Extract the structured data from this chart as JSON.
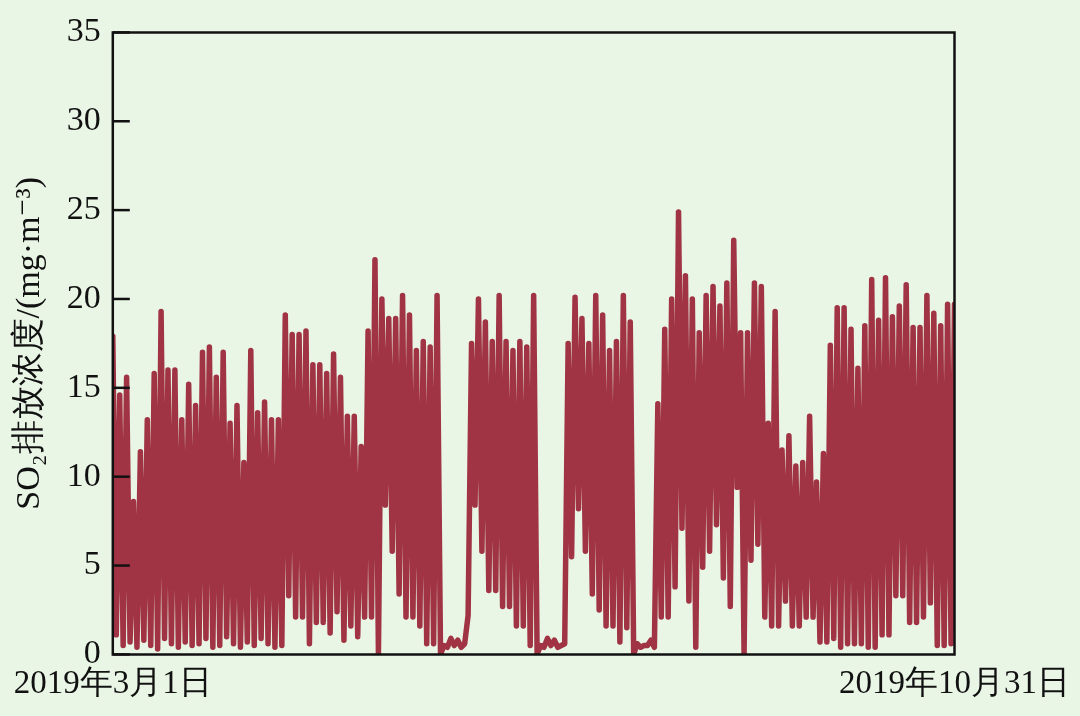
{
  "chart_data": {
    "type": "line",
    "ylabel": "SO₂排放浓度/(mg·m⁻³)",
    "x": [
      "2019-03-01",
      "2019-03-02",
      "2019-03-03",
      "2019-03-04",
      "2019-03-05",
      "2019-03-06",
      "2019-03-07",
      "2019-03-08",
      "2019-03-09",
      "2019-03-10",
      "2019-03-11",
      "2019-03-12",
      "2019-03-13",
      "2019-03-14",
      "2019-03-15",
      "2019-03-16",
      "2019-03-17",
      "2019-03-18",
      "2019-03-19",
      "2019-03-20",
      "2019-03-21",
      "2019-03-22",
      "2019-03-23",
      "2019-03-24",
      "2019-03-25",
      "2019-03-26",
      "2019-03-27",
      "2019-03-28",
      "2019-03-29",
      "2019-03-30",
      "2019-03-31",
      "2019-04-01",
      "2019-04-02",
      "2019-04-03",
      "2019-04-04",
      "2019-04-05",
      "2019-04-06",
      "2019-04-07",
      "2019-04-08",
      "2019-04-09",
      "2019-04-10",
      "2019-04-11",
      "2019-04-12",
      "2019-04-13",
      "2019-04-14",
      "2019-04-15",
      "2019-04-16",
      "2019-04-17",
      "2019-04-18",
      "2019-04-19",
      "2019-04-20",
      "2019-04-21",
      "2019-04-22",
      "2019-04-23",
      "2019-04-24",
      "2019-04-25",
      "2019-04-26",
      "2019-04-27",
      "2019-04-28",
      "2019-04-29",
      "2019-04-30",
      "2019-05-01",
      "2019-05-02",
      "2019-05-03",
      "2019-05-04",
      "2019-05-05",
      "2019-05-06",
      "2019-05-07",
      "2019-05-08",
      "2019-05-09",
      "2019-05-10",
      "2019-05-11",
      "2019-05-12",
      "2019-05-13",
      "2019-05-14",
      "2019-05-15",
      "2019-05-16",
      "2019-05-17",
      "2019-05-18",
      "2019-05-19",
      "2019-05-20",
      "2019-05-21",
      "2019-05-22",
      "2019-05-23",
      "2019-05-24",
      "2019-05-25",
      "2019-05-26",
      "2019-05-27",
      "2019-05-28",
      "2019-05-29",
      "2019-05-30",
      "2019-05-31",
      "2019-06-01",
      "2019-06-02",
      "2019-06-03",
      "2019-06-04",
      "2019-06-05",
      "2019-06-06",
      "2019-06-07",
      "2019-06-08",
      "2019-06-09",
      "2019-06-10",
      "2019-06-11",
      "2019-06-12",
      "2019-06-13",
      "2019-06-14",
      "2019-06-15",
      "2019-06-16",
      "2019-06-17",
      "2019-06-18",
      "2019-06-19",
      "2019-06-20",
      "2019-06-21",
      "2019-06-22",
      "2019-06-23",
      "2019-06-24",
      "2019-06-25",
      "2019-06-26",
      "2019-06-27",
      "2019-06-28",
      "2019-06-29",
      "2019-06-30",
      "2019-07-01",
      "2019-07-02",
      "2019-07-03",
      "2019-07-04",
      "2019-07-05",
      "2019-07-06",
      "2019-07-07",
      "2019-07-08",
      "2019-07-09",
      "2019-07-10",
      "2019-07-11",
      "2019-07-12",
      "2019-07-13",
      "2019-07-14",
      "2019-07-15",
      "2019-07-16",
      "2019-07-17",
      "2019-07-18",
      "2019-07-19",
      "2019-07-20",
      "2019-07-21",
      "2019-07-22",
      "2019-07-23",
      "2019-07-24",
      "2019-07-25",
      "2019-07-26",
      "2019-07-27",
      "2019-07-28",
      "2019-07-29",
      "2019-07-30",
      "2019-07-31",
      "2019-08-01",
      "2019-08-02",
      "2019-08-03",
      "2019-08-04",
      "2019-08-05",
      "2019-08-06",
      "2019-08-07",
      "2019-08-08",
      "2019-08-09",
      "2019-08-10",
      "2019-08-11",
      "2019-08-12",
      "2019-08-13",
      "2019-08-14",
      "2019-08-15",
      "2019-08-16",
      "2019-08-17",
      "2019-08-18",
      "2019-08-19",
      "2019-08-20",
      "2019-08-21",
      "2019-08-22",
      "2019-08-23",
      "2019-08-24",
      "2019-08-25",
      "2019-08-26",
      "2019-08-27",
      "2019-08-28",
      "2019-08-29",
      "2019-08-30",
      "2019-08-31",
      "2019-09-01",
      "2019-09-02",
      "2019-09-03",
      "2019-09-04",
      "2019-09-05",
      "2019-09-06",
      "2019-09-07",
      "2019-09-08",
      "2019-09-09",
      "2019-09-10",
      "2019-09-11",
      "2019-09-12",
      "2019-09-13",
      "2019-09-14",
      "2019-09-15",
      "2019-09-16",
      "2019-09-17",
      "2019-09-18",
      "2019-09-19",
      "2019-09-20",
      "2019-09-21",
      "2019-09-22",
      "2019-09-23",
      "2019-09-24",
      "2019-09-25",
      "2019-09-26",
      "2019-09-27",
      "2019-09-28",
      "2019-09-29",
      "2019-09-30",
      "2019-10-01",
      "2019-10-02",
      "2019-10-03",
      "2019-10-04",
      "2019-10-05",
      "2019-10-06",
      "2019-10-07",
      "2019-10-08",
      "2019-10-09",
      "2019-10-10",
      "2019-10-11",
      "2019-10-12",
      "2019-10-13",
      "2019-10-14",
      "2019-10-15",
      "2019-10-16",
      "2019-10-17",
      "2019-10-18",
      "2019-10-19",
      "2019-10-20",
      "2019-10-21",
      "2019-10-22",
      "2019-10-23",
      "2019-10-24",
      "2019-10-25",
      "2019-10-26",
      "2019-10-27",
      "2019-10-28",
      "2019-10-29",
      "2019-10-30",
      "2019-10-31"
    ],
    "values": [
      17.9,
      1.1,
      14.6,
      0.5,
      15.6,
      0.7,
      8.6,
      0.4,
      11.4,
      0.8,
      13.2,
      0.5,
      15.8,
      0.3,
      19.3,
      0.9,
      16,
      0.6,
      16,
      0.4,
      13.2,
      0.7,
      15.2,
      0.5,
      14,
      0.6,
      17,
      0.9,
      17.3,
      0.4,
      15.6,
      0.5,
      17,
      1,
      13,
      0.6,
      14,
      0.4,
      10.8,
      0.7,
      17.1,
      0.5,
      13.6,
      0.9,
      14.2,
      0.6,
      13.2,
      0.4,
      13.2,
      0.5,
      19.1,
      3.3,
      18,
      2.1,
      18,
      2.1,
      18.2,
      0.6,
      16.3,
      1.8,
      16.3,
      1.8,
      15.8,
      1.2,
      16.9,
      2.4,
      15.6,
      0.8,
      13.4,
      1.6,
      13.4,
      1,
      11.7,
      2.1,
      18.2,
      2.1,
      22.2,
      0,
      20,
      8.4,
      18.9,
      5.8,
      18.9,
      3.4,
      20.2,
      2.1,
      19.1,
      2.1,
      17.1,
      1.6,
      17.6,
      0.6,
      17.3,
      0.6,
      20.2,
      0,
      0.5,
      0.4,
      0.9,
      0.5,
      0.8,
      0.4,
      0.6,
      2.2,
      17.5,
      8.4,
      20,
      5.8,
      18.7,
      3.6,
      17.6,
      3.6,
      20.2,
      2.7,
      17.6,
      2.7,
      17.1,
      1.6,
      17.6,
      1.6,
      17.3,
      0.5,
      20.2,
      0,
      0.5,
      0.4,
      0.9,
      0.5,
      0.8,
      0.4,
      0.5,
      0.6,
      17.5,
      5.5,
      20.1,
      8.2,
      18.9,
      5.8,
      17.5,
      3.4,
      20.2,
      2.5,
      19.1,
      1.6,
      17.1,
      1.6,
      17.6,
      0.7,
      20.2,
      1.5,
      18.7,
      0,
      0.6,
      0.4,
      0.5,
      0.5,
      0.8,
      0.4,
      14.1,
      2.1,
      18.3,
      2.1,
      20,
      3.8,
      24.9,
      7.1,
      21.3,
      3,
      20,
      0.4,
      18.1,
      4.9,
      20.2,
      5.8,
      20.7,
      7.3,
      19.6,
      4.3,
      20.9,
      2.7,
      23.3,
      9.4,
      18.1,
      0,
      18.1,
      5.3,
      20.9,
      6.2,
      20.7,
      2.1,
      13,
      1.6,
      19.3,
      1.6,
      11.5,
      3,
      12.3,
      1.6,
      10.6,
      1.6,
      10.8,
      2.1,
      13.4,
      2.1,
      9.7,
      0.7,
      11.3,
      0.7,
      17.4,
      0.9,
      19.5,
      0.4,
      19.5,
      0.6,
      18.3,
      0.6,
      16.1,
      0.6,
      18.5,
      0.4,
      21.1,
      0.4,
      18.8,
      1.1,
      21.2,
      1.1,
      19,
      3.3,
      19.6,
      3.3,
      20.8,
      1.8,
      18.4,
      1.8,
      18.4,
      2.1,
      20.2,
      2.9,
      19.2,
      0.5,
      18.5,
      0.5,
      19.7,
      0.6,
      19.7
    ],
    "color": "#a03444",
    "xlim": [
      "2019-03-01",
      "2019-10-31"
    ],
    "xticks": [
      {
        "value": "2019-03-01",
        "label": "2019年3月1日"
      },
      {
        "value": "2019-10-31",
        "label": "2019年10月31日"
      }
    ],
    "ylim": [
      0,
      35
    ],
    "yticks": [
      0,
      5,
      10,
      15,
      20,
      25,
      30,
      35
    ],
    "marker": "none",
    "line_style": "solid"
  }
}
